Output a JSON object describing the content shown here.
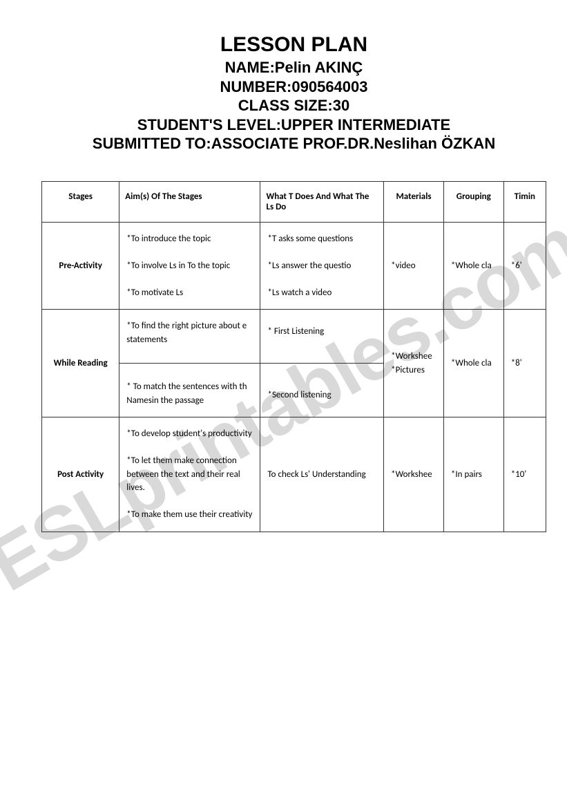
{
  "watermark": "ESLprintables.com",
  "header": {
    "title": "LESSON PLAN",
    "name_label": "NAME:",
    "name_value": "Pelin AKINÇ",
    "number_label": "NUMBER:",
    "number_value": "090564003",
    "class_size_label": "CLASS SIZE:",
    "class_size_value": "30",
    "level_label": "STUDENT'S LEVEL:",
    "level_value": "UPPER INTERMEDIATE",
    "submitted_label": "SUBMITTED TO:",
    "submitted_value": "ASSOCIATE PROF.DR.Neslihan ÖZKAN"
  },
  "table": {
    "columns": {
      "stages": "Stages",
      "aims": "Aim(s) Of The Stages",
      "what": "What T Does And What The Ls Do",
      "materials": "Materials",
      "grouping": "Grouping",
      "timing": "Timin"
    },
    "rows": [
      {
        "stage": "Pre-Activity",
        "aims": "*To introduce the topic\n\n*To involve Ls in To the topic\n\n*To motivate Ls",
        "what": "*T asks some questions\n\n*Ls answer the questio\n\n*Ls watch a video",
        "materials": "*video",
        "grouping": "*Whole cla",
        "timing": "*6'"
      },
      {
        "stage": "While Reading",
        "aims_a": "*To find the right picture about e statements",
        "aims_b": "* To match the sentences with th Namesin the passage",
        "what_a": "* First Listening",
        "what_b": "*Second listening",
        "materials": "*Workshee\n*Pictures",
        "grouping": "*Whole cla",
        "timing": "*8'"
      },
      {
        "stage": "Post Activity",
        "aims": "*To develop student's productivity\n\n*To let them make connection between the text and their real lives.\n\n*To make them use their creativity",
        "what": "To check Ls' Understanding",
        "materials": "*Workshee",
        "grouping": "*In pairs",
        "timing": "*10'"
      }
    ]
  },
  "colors": {
    "text": "#000000",
    "border": "#333333",
    "background": "#ffffff",
    "watermark": "#d9d9d9"
  }
}
